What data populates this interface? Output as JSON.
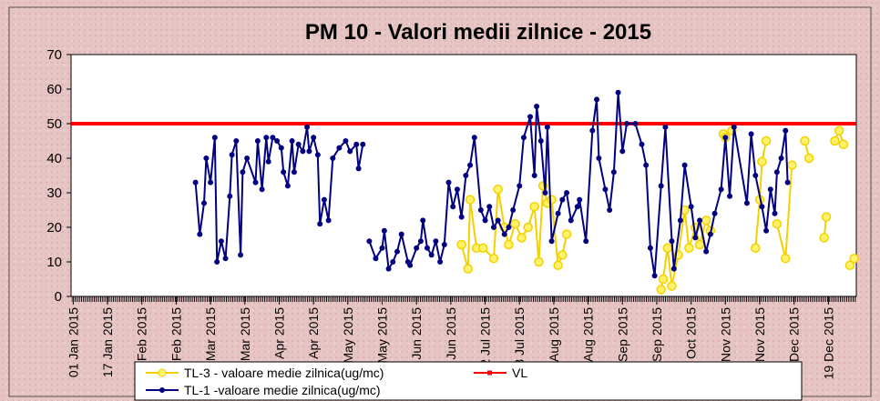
{
  "chart_data": {
    "type": "line",
    "title": "PM 10 - Valori medii zilnice - 2015",
    "xlim": [
      "31 Dec 2014",
      "01 Jan 2016"
    ],
    "xticks": [
      "01 Jan 2015",
      "17 Jan 2015",
      "02 Feb 2015",
      "18 Feb 2015",
      "06 Mar 2015",
      "22 Mar 2015",
      "07 Apr 2015",
      "23 Apr 2015",
      "09 May 2015",
      "25 May 2015",
      "10 Jun 2015",
      "26 Jun 2015",
      "12 Jul 2015",
      "28 Jul 2015",
      "13 Aug 2015",
      "29 Aug 2015",
      "14 Sep 2015",
      "30 Sep 2015",
      "16 Oct 2015",
      "01 Nov 2015",
      "17 Nov 2015",
      "03 Dec 2015",
      "19 Dec 2015"
    ],
    "ylim": [
      0,
      70
    ],
    "yticks": [
      0,
      10,
      20,
      30,
      40,
      50,
      60,
      70
    ],
    "grid": false,
    "series": [
      {
        "name": "TL-3 - valoare medie zilnica(ug/mc)",
        "color": "#f5d000",
        "marker": "circle",
        "x": [
          "01 Jul 2015",
          "04 Jul 2015",
          "05 Jul 2015",
          "08 Jul 2015",
          "11 Jul 2015",
          "16 Jul 2015",
          "18 Jul 2015",
          "21 Jul 2015",
          "23 Jul 2015",
          "26 Jul 2015",
          "29 Jul 2015",
          "01 Aug 2015",
          "04 Aug 2015",
          "06 Aug 2015",
          "08 Aug 2015",
          "10 Aug 2015",
          "12 Aug 2015",
          "15 Aug 2015",
          "17 Aug 2015",
          "19 Aug 2015",
          "25 Aug 2015",
          "02 Oct 2015",
          "03 Oct 2015",
          "05 Oct 2015",
          "07 Oct 2015",
          "10 Oct 2015",
          "13 Oct 2015",
          "15 Oct 2015",
          "18 Oct 2015",
          "20 Oct 2015",
          "23 Oct 2015",
          "25 Oct 2015",
          "28 Oct 2015",
          "31 Oct 2015",
          "01 Nov 2015",
          "04 Nov 2015",
          "08 Nov 2015",
          "15 Nov 2015",
          "17 Nov 2015",
          "18 Nov 2015",
          "20 Nov 2015",
          "22 Nov 2015",
          "25 Nov 2015",
          "29 Nov 2015",
          "02 Dec 2015",
          "05 Dec 2015",
          "08 Dec 2015",
          "10 Dec 2015",
          "12 Dec 2015",
          "17 Dec 2015",
          "18 Dec 2015",
          "20 Dec 2015",
          "22 Dec 2015",
          "24 Dec 2015",
          "26 Dec 2015",
          "27 Dec 2015",
          "29 Dec 2015",
          "31 Dec 2015"
        ],
        "values": [
          15,
          8,
          28,
          14,
          14,
          11,
          31,
          20,
          15,
          21,
          17,
          20,
          26,
          10,
          32,
          27,
          28,
          9,
          12,
          18,
          null,
          2,
          5,
          14,
          3,
          12,
          25,
          14,
          20,
          15,
          22,
          19,
          null,
          47,
          46,
          48,
          null,
          14,
          28,
          39,
          45,
          null,
          21,
          11,
          38,
          null,
          45,
          40,
          null,
          17,
          23,
          null,
          45,
          48,
          44,
          null,
          9,
          11
        ]
      },
      {
        "name": "VL",
        "color": "#ff0000",
        "marker": "none",
        "x": [
          "31 Dec 2014",
          "01 Jan 2016"
        ],
        "values": [
          50,
          50
        ]
      },
      {
        "name": "TL-1 -valoare medie zilnica(ug/mc)",
        "color": "#000080",
        "marker": "dot",
        "x": [
          "27 Feb 2015",
          "01 Mar 2015",
          "03 Mar 2015",
          "04 Mar 2015",
          "06 Mar 2015",
          "08 Mar 2015",
          "09 Mar 2015",
          "11 Mar 2015",
          "13 Mar 2015",
          "15 Mar 2015",
          "16 Mar 2015",
          "18 Mar 2015",
          "20 Mar 2015",
          "21 Mar 2015",
          "23 Mar 2015",
          "27 Mar 2015",
          "28 Mar 2015",
          "30 Mar 2015",
          "01 Apr 2015",
          "02 Apr 2015",
          "04 Apr 2015",
          "06 Apr 2015",
          "08 Apr 2015",
          "09 Apr 2015",
          "11 Apr 2015",
          "13 Apr 2015",
          "14 Apr 2015",
          "16 Apr 2015",
          "18 Apr 2015",
          "20 Apr 2015",
          "21 Apr 2015",
          "23 Apr 2015",
          "25 Apr 2015",
          "26 Apr 2015",
          "28 Apr 2015",
          "30 Apr 2015",
          "02 May 2015",
          "05 May 2015",
          "08 May 2015",
          "10 May 2015",
          "13 May 2015",
          "14 May 2015",
          "16 May 2015",
          "18 May 2015",
          "19 May 2015",
          "22 May 2015",
          "25 May 2015",
          "26 May 2015",
          "28 May 2015",
          "30 May 2015",
          "01 Jun 2015",
          "03 Jun 2015",
          "06 Jun 2015",
          "07 Jun 2015",
          "10 Jun 2015",
          "12 Jun 2015",
          "13 Jun 2015",
          "15 Jun 2015",
          "17 Jun 2015",
          "19 Jun 2015",
          "21 Jun 2015",
          "23 Jun 2015",
          "25 Jun 2015",
          "27 Jun 2015",
          "29 Jun 2015",
          "01 Jul 2015",
          "03 Jul 2015",
          "05 Jul 2015",
          "07 Jul 2015",
          "10 Jul 2015",
          "12 Jul 2015",
          "14 Jul 2015",
          "16 Jul 2015",
          "18 Jul 2015",
          "21 Jul 2015",
          "23 Jul 2015",
          "25 Jul 2015",
          "28 Jul 2015",
          "30 Jul 2015",
          "02 Aug 2015",
          "04 Aug 2015",
          "05 Aug 2015",
          "07 Aug 2015",
          "09 Aug 2015",
          "10 Aug 2015",
          "12 Aug 2015",
          "15 Aug 2015",
          "17 Aug 2015",
          "19 Aug 2015",
          "21 Aug 2015",
          "24 Aug 2015",
          "25 Aug 2015",
          "28 Aug 2015",
          "31 Aug 2015",
          "02 Sep 2015",
          "03 Sep 2015",
          "06 Sep 2015",
          "08 Sep 2015",
          "10 Sep 2015",
          "12 Sep 2015",
          "14 Sep 2015",
          "16 Sep 2015",
          "20 Sep 2015",
          "23 Sep 2015",
          "25 Sep 2015",
          "27 Sep 2015",
          "29 Sep 2015",
          "02 Oct 2015",
          "04 Oct 2015",
          "07 Oct 2015",
          "08 Oct 2015",
          "11 Oct 2015",
          "13 Oct 2015",
          "16 Oct 2015",
          "18 Oct 2015",
          "20 Oct 2015",
          "23 Oct 2015",
          "25 Oct 2015",
          "27 Oct 2015",
          "30 Oct 2015",
          "01 Nov 2015",
          "03 Nov 2015",
          "05 Nov 2015",
          "11 Nov 2015",
          "13 Nov 2015",
          "15 Nov 2015",
          "18 Nov 2015",
          "20 Nov 2015",
          "22 Nov 2015",
          "24 Nov 2015",
          "25 Nov 2015",
          "27 Nov 2015",
          "29 Nov 2015",
          "30 Nov 2015"
        ],
        "values": [
          33,
          18,
          27,
          40,
          33,
          46,
          10,
          16,
          11,
          29,
          41,
          45,
          12,
          36,
          40,
          33,
          45,
          31,
          46,
          39,
          46,
          45,
          43,
          36,
          32,
          45,
          36,
          44,
          42,
          49,
          42,
          46,
          41,
          21,
          28,
          22,
          40,
          43,
          45,
          42,
          44,
          37,
          44,
          null,
          16,
          11,
          14,
          19,
          8,
          10,
          13,
          18,
          10,
          9,
          14,
          16,
          22,
          14,
          12,
          16,
          10,
          15,
          33,
          26,
          31,
          23,
          35,
          38,
          46,
          25,
          22,
          26,
          20,
          22,
          18,
          20,
          25,
          32,
          46,
          52,
          35,
          55,
          45,
          30,
          49,
          16,
          24,
          28,
          30,
          22,
          26,
          28,
          16,
          48,
          57,
          40,
          31,
          25,
          36,
          59,
          42,
          50,
          50,
          44,
          38,
          14,
          6,
          32,
          49,
          16,
          8,
          22,
          38,
          26,
          17,
          22,
          13,
          18,
          24,
          31,
          46,
          29,
          49,
          27,
          47,
          35,
          26,
          19,
          31,
          24,
          36,
          40,
          48,
          33
        ]
      }
    ]
  }
}
